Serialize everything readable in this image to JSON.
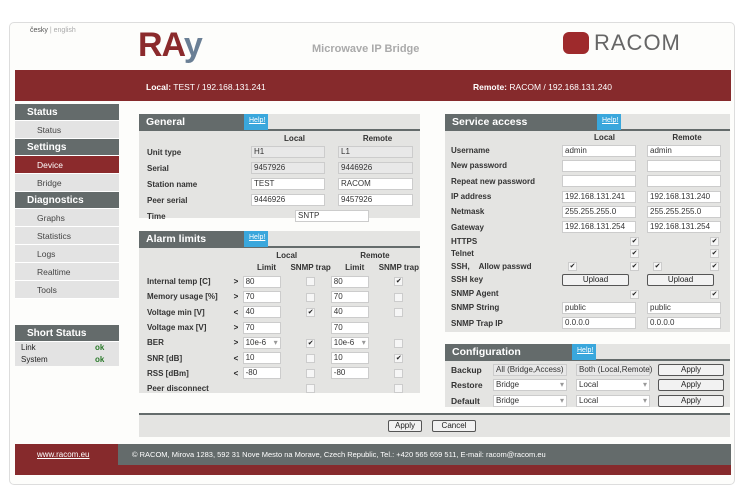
{
  "header": {
    "lang_cs": "česky",
    "lang_sep": "|",
    "lang_en": "english",
    "logo_ray": "RA",
    "logo_ray_y": "y",
    "subtitle": "Microwave IP Bridge",
    "logo_racom": "RACOM"
  },
  "status_bar": {
    "local_label": "Local:",
    "local_value": "TEST / 192.168.131.241",
    "remote_label": "Remote:",
    "remote_value": "RACOM / 192.168.131.240"
  },
  "sidebar": [
    {
      "type": "header",
      "label": "Status"
    },
    {
      "type": "item",
      "label": "Status"
    },
    {
      "type": "header",
      "label": "Settings"
    },
    {
      "type": "item",
      "label": "Device",
      "active": true
    },
    {
      "type": "item",
      "label": "Bridge"
    },
    {
      "type": "header",
      "label": "Diagnostics"
    },
    {
      "type": "item",
      "label": "Graphs"
    },
    {
      "type": "item",
      "label": "Statistics"
    },
    {
      "type": "item",
      "label": "Logs"
    },
    {
      "type": "item",
      "label": "Realtime"
    },
    {
      "type": "item",
      "label": "Tools"
    }
  ],
  "short_status": {
    "title": "Short Status",
    "items": [
      {
        "label": "Link",
        "value": "ok"
      },
      {
        "label": "System",
        "value": "ok"
      }
    ]
  },
  "general": {
    "title": "General",
    "help": "Help!",
    "col_local": "Local",
    "col_remote": "Remote",
    "rows": [
      {
        "label": "Unit type",
        "local": "H1",
        "remote": "L1",
        "readonly": true
      },
      {
        "label": "Serial",
        "local": "9457926",
        "remote": "9446926",
        "readonly": true
      },
      {
        "label": "Station name",
        "local": "TEST",
        "remote": "RACOM",
        "readonly": false
      },
      {
        "label": "Peer serial",
        "local": "9446926",
        "remote": "9457926",
        "readonly": false
      }
    ],
    "time_label": "Time",
    "time_value": "SNTP"
  },
  "alarm": {
    "title": "Alarm limits",
    "help": "Help!",
    "col_local": "Local",
    "col_remote": "Remote",
    "col_limit": "Limit",
    "col_trap": "SNMP trap",
    "rows": [
      {
        "label": "Internal temp [C]",
        "op": ">",
        "local": "80",
        "local_trap": false,
        "remote": "80",
        "remote_trap": true
      },
      {
        "label": "Memory usage [%]",
        "op": ">",
        "local": "70",
        "local_trap": false,
        "remote": "70",
        "remote_trap": false
      },
      {
        "label": "Voltage min [V]",
        "op": "<",
        "local": "40",
        "local_trap": true,
        "remote": "40",
        "remote_trap": false
      },
      {
        "label": "Voltage max [V]",
        "op": ">",
        "local": "70",
        "local_trap": null,
        "remote": "70",
        "remote_trap": null
      },
      {
        "label": "BER",
        "op": ">",
        "local": "10e-6",
        "local_trap": true,
        "remote": "10e-6",
        "remote_trap": false,
        "select": true
      },
      {
        "label": "SNR [dB]",
        "op": "<",
        "local": "10",
        "local_trap": false,
        "remote": "10",
        "remote_trap": true
      },
      {
        "label": "RSS [dBm]",
        "op": "<",
        "local": "-80",
        "local_trap": false,
        "remote": "-80",
        "remote_trap": false
      },
      {
        "label": "Peer disconnect",
        "op": "",
        "local": null,
        "local_trap": false,
        "remote": null,
        "remote_trap": false
      }
    ]
  },
  "service": {
    "title": "Service access",
    "help": "Help!",
    "col_local": "Local",
    "col_remote": "Remote",
    "rows": [
      {
        "type": "text",
        "label": "Username",
        "local": "admin",
        "remote": "admin"
      },
      {
        "type": "text",
        "label": "New password",
        "local": "",
        "remote": ""
      },
      {
        "type": "text",
        "label": "Repeat new password",
        "local": "",
        "remote": ""
      },
      {
        "type": "text",
        "label": "IP address",
        "local": "192.168.131.241",
        "remote": "192.168.131.240"
      },
      {
        "type": "text",
        "label": "Netmask",
        "local": "255.255.255.0",
        "remote": "255.255.255.0"
      },
      {
        "type": "text",
        "label": "Gateway",
        "local": "192.168.131.254",
        "remote": "192.168.131.254"
      },
      {
        "type": "check",
        "label": "HTTPS",
        "local": true,
        "remote": true
      },
      {
        "type": "check",
        "label": "Telnet",
        "local": true,
        "remote": true
      },
      {
        "type": "ssh",
        "label": "SSH,",
        "label2": "Allow passwd",
        "local": true,
        "local2": true,
        "remote": true,
        "remote2": true
      },
      {
        "type": "button",
        "label": "SSH key",
        "local": "Upload",
        "remote": "Upload"
      },
      {
        "type": "check",
        "label": "SNMP Agent",
        "local": true,
        "remote": true
      },
      {
        "type": "text",
        "label": "SNMP String",
        "local": "public",
        "remote": "public"
      },
      {
        "type": "text",
        "label": "SNMP Trap IP",
        "local": "0.0.0.0",
        "remote": "0.0.0.0"
      }
    ]
  },
  "configuration": {
    "title": "Configuration",
    "help": "Help!",
    "rows": [
      {
        "label": "Backup",
        "what": "All (Bridge,Access)",
        "where": "Both (Local,Remote)",
        "select": false,
        "apply": "Apply"
      },
      {
        "label": "Restore",
        "what": "Bridge",
        "where": "Local",
        "select": true,
        "apply": "Apply"
      },
      {
        "label": "Default",
        "what": "Bridge",
        "where": "Local",
        "select": true,
        "apply": "Apply"
      }
    ]
  },
  "actions": {
    "apply": "Apply",
    "cancel": "Cancel"
  },
  "footer": {
    "link": "www.racom.eu",
    "text": "© RACOM, Mirova 1283, 592 31 Nove Mesto na Morave, Czech Republic, Tel.: +420 565 659 511, E-mail: racom@racom.eu"
  }
}
